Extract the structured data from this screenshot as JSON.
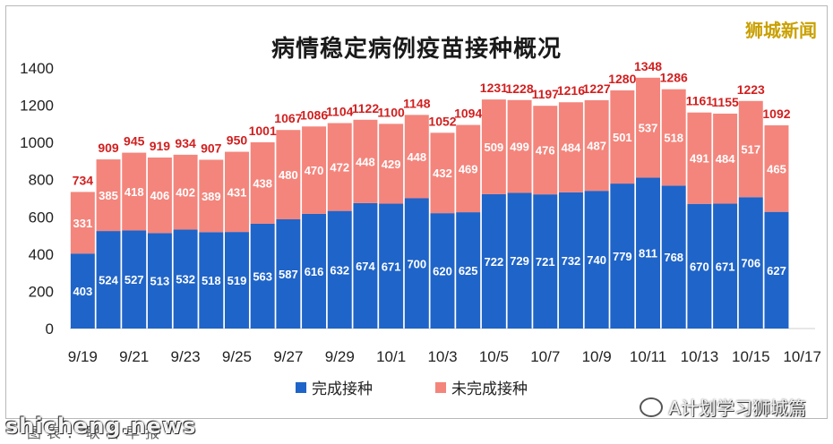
{
  "brand": "狮城新闻",
  "watermark_left": "shicheng.news",
  "watermark_right": "A计划学习狮城篇",
  "source_note": "图表：联合早报",
  "colors": {
    "completed": "#1f64c8",
    "incomplete": "#f4857c",
    "total_label": "#d21f1f"
  },
  "chart_data": {
    "type": "bar",
    "stacked": true,
    "title": "病情稳定病例疫苗接种概况",
    "xlabel": "",
    "ylabel": "",
    "ylim": [
      0,
      1400
    ],
    "yticks": [
      0,
      200,
      400,
      600,
      800,
      1000,
      1200,
      1400
    ],
    "grid": false,
    "legend": "bottom",
    "categories": [
      "9/19",
      "9/20",
      "9/21",
      "9/22",
      "9/23",
      "9/24",
      "9/25",
      "9/26",
      "9/27",
      "9/28",
      "9/29",
      "9/30",
      "10/1",
      "10/2",
      "10/3",
      "10/4",
      "10/5",
      "10/6",
      "10/7",
      "10/8",
      "10/9",
      "10/10",
      "10/11",
      "10/12",
      "10/13",
      "10/14",
      "10/15",
      "10/16",
      "10/17"
    ],
    "xtick_labels": [
      "9/19",
      "9/21",
      "9/23",
      "9/25",
      "9/27",
      "9/29",
      "10/1",
      "10/3",
      "10/5",
      "10/7",
      "10/9",
      "10/11",
      "10/13",
      "10/15",
      "10/17"
    ],
    "series": [
      {
        "name": "完成接种",
        "values": [
          403,
          524,
          527,
          513,
          532,
          518,
          519,
          563,
          587,
          616,
          632,
          674,
          671,
          700,
          620,
          625,
          722,
          729,
          721,
          732,
          740,
          779,
          811,
          768,
          670,
          671,
          706,
          627,
          null
        ]
      },
      {
        "name": "未完成接种",
        "values": [
          331,
          385,
          418,
          406,
          402,
          389,
          431,
          438,
          480,
          470,
          472,
          448,
          429,
          448,
          432,
          469,
          509,
          499,
          476,
          484,
          487,
          501,
          537,
          518,
          491,
          484,
          517,
          465,
          null
        ]
      }
    ],
    "totals": [
      734,
      909,
      945,
      919,
      934,
      907,
      950,
      1001,
      1067,
      1086,
      1104,
      1122,
      1100,
      1148,
      1052,
      1094,
      1231,
      1228,
      1197,
      1216,
      1227,
      1280,
      1348,
      1286,
      1161,
      1155,
      1223,
      1092,
      null
    ]
  }
}
